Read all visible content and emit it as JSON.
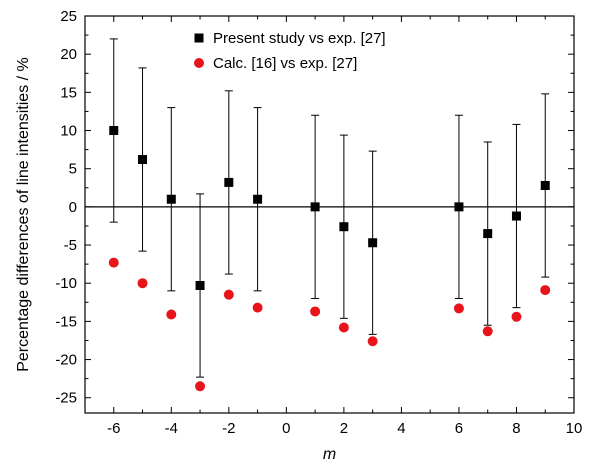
{
  "chart_data": {
    "type": "scatter",
    "xlabel": "m",
    "ylabel": "Percentage differences of line intensities / %",
    "xlim": [
      -7,
      10
    ],
    "ylim": [
      -27,
      25
    ],
    "x_ticks": [
      -6,
      -4,
      -2,
      0,
      2,
      4,
      6,
      8,
      10
    ],
    "y_ticks": [
      -25,
      -20,
      -15,
      -10,
      -5,
      0,
      5,
      10,
      15,
      20,
      25
    ],
    "zero_line": true,
    "grid": false,
    "legend_position": "top-center",
    "series": [
      {
        "name": "Present study vs exp. [27]",
        "marker": "square",
        "color": "#000000",
        "points": [
          {
            "x": -6,
            "y": 10.0,
            "err": 12.0
          },
          {
            "x": -5,
            "y": 6.2,
            "err": 12.0
          },
          {
            "x": -4,
            "y": 1.0,
            "err": 12.0
          },
          {
            "x": -3,
            "y": -10.3,
            "err": 12.0
          },
          {
            "x": -2,
            "y": 3.2,
            "err": 12.0
          },
          {
            "x": -1,
            "y": 1.0,
            "err": 12.0
          },
          {
            "x": 1,
            "y": 0.0,
            "err": 12.0
          },
          {
            "x": 2,
            "y": -2.6,
            "err": 12.0
          },
          {
            "x": 3,
            "y": -4.7,
            "err": 12.0
          },
          {
            "x": 6,
            "y": 0.0,
            "err": 12.0
          },
          {
            "x": 7,
            "y": -3.5,
            "err": 12.0
          },
          {
            "x": 8,
            "y": -1.2,
            "err": 12.0
          },
          {
            "x": 9,
            "y": 2.8,
            "err": 12.0
          }
        ]
      },
      {
        "name": "Calc. [16] vs exp. [27]",
        "marker": "circle",
        "color": "#e8141b",
        "points": [
          {
            "x": -6,
            "y": -7.3
          },
          {
            "x": -5,
            "y": -10.0
          },
          {
            "x": -4,
            "y": -14.1
          },
          {
            "x": -3,
            "y": -23.5
          },
          {
            "x": -2,
            "y": -11.5
          },
          {
            "x": -1,
            "y": -13.2
          },
          {
            "x": 1,
            "y": -13.7
          },
          {
            "x": 2,
            "y": -15.8
          },
          {
            "x": 3,
            "y": -17.6
          },
          {
            "x": 6,
            "y": -13.3
          },
          {
            "x": 7,
            "y": -16.3
          },
          {
            "x": 8,
            "y": -14.4
          },
          {
            "x": 9,
            "y": -10.9
          }
        ]
      }
    ]
  }
}
